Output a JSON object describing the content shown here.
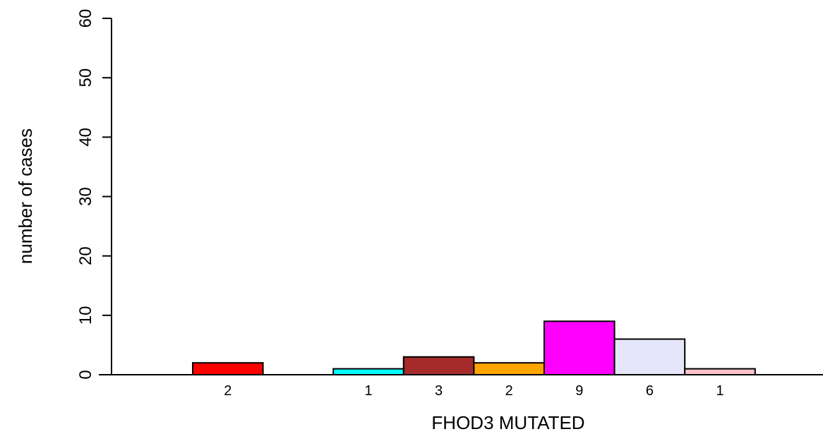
{
  "chart_data": {
    "type": "bar",
    "xlabel": "FHOD3 MUTATED",
    "ylabel": "number of cases",
    "ylim": [
      0,
      60
    ],
    "yticks": [
      "0",
      "10",
      "20",
      "30",
      "40",
      "50",
      "60"
    ],
    "slots": 9,
    "bars": [
      {
        "slot": 0,
        "value": 2,
        "label": "2",
        "color": "#ff0000"
      },
      {
        "slot": 2,
        "value": 1,
        "label": "1",
        "color": "#00ffff"
      },
      {
        "slot": 3,
        "value": 3,
        "label": "3",
        "color": "#a52a2a"
      },
      {
        "slot": 4,
        "value": 2,
        "label": "2",
        "color": "#ffa500"
      },
      {
        "slot": 5,
        "value": 9,
        "label": "9",
        "color": "#ff00ff"
      },
      {
        "slot": 6,
        "value": 6,
        "label": "6",
        "color": "#e6e6fa"
      },
      {
        "slot": 7,
        "value": 1,
        "label": "1",
        "color": "#ffc0cb"
      }
    ],
    "grid": false,
    "legend": "none"
  }
}
